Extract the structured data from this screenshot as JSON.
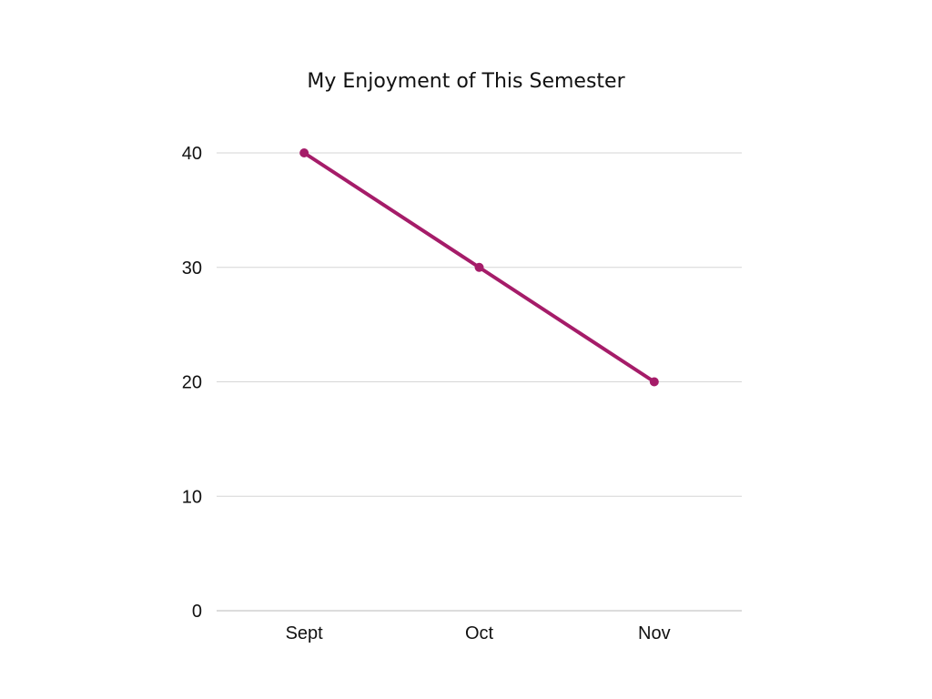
{
  "chart_data": {
    "type": "line",
    "title": "My Enjoyment of This Semester",
    "xlabel": "",
    "ylabel": "",
    "categories": [
      "Sept",
      "Oct",
      "Nov"
    ],
    "series": [
      {
        "values": [
          40,
          30,
          20
        ],
        "color": "#a51c69"
      }
    ],
    "ylim": [
      0,
      40
    ],
    "yticks": [
      0,
      10,
      20,
      30,
      40
    ],
    "grid": true,
    "gridline_color": "#d6d6d6",
    "legend": "none"
  }
}
